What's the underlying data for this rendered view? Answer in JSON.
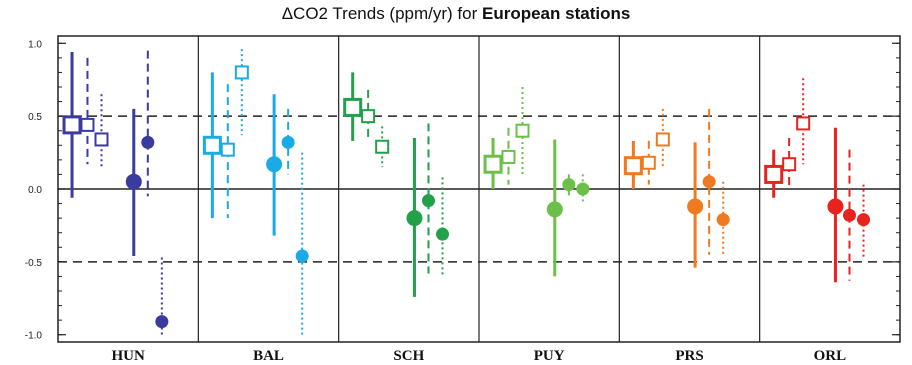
{
  "chart_data": {
    "type": "scatter",
    "title_prefix": "ΔCO2 Trends (ppm/yr) for",
    "title_bold": "European stations",
    "ylim": [
      -1.05,
      1.05
    ],
    "yticks": [
      1.0,
      0.5,
      0.0,
      -0.5,
      -1.0
    ],
    "ytick_labels": [
      "1.0",
      "0.5",
      "0.0",
      "-0.5",
      "-1.0"
    ],
    "reference_lines": [
      0.5,
      -0.5
    ],
    "zero_line": 0.0,
    "stations": [
      {
        "name": "HUN",
        "color": "#3b3a9e",
        "series": [
          {
            "marker": "square",
            "style": "solid",
            "value": 0.44,
            "low": -0.06,
            "high": 0.94
          },
          {
            "marker": "square",
            "style": "dashed",
            "value": 0.44,
            "low": 0.17,
            "high": 0.9
          },
          {
            "marker": "square",
            "style": "dotted",
            "value": 0.34,
            "low": 0.15,
            "high": 0.65
          },
          {
            "marker": "circle",
            "style": "solid",
            "value": 0.05,
            "low": -0.46,
            "high": 0.55
          },
          {
            "marker": "circle",
            "style": "dashed",
            "value": 0.32,
            "low": -0.05,
            "high": 0.95
          },
          {
            "marker": "circle",
            "style": "dotted",
            "value": -0.91,
            "low": -1.0,
            "high": -0.47
          }
        ]
      },
      {
        "name": "BAL",
        "color": "#1aaae6",
        "series": [
          {
            "marker": "square",
            "style": "solid",
            "value": 0.3,
            "low": -0.2,
            "high": 0.8
          },
          {
            "marker": "square",
            "style": "dashed",
            "value": 0.27,
            "low": -0.2,
            "high": 0.72
          },
          {
            "marker": "square",
            "style": "dotted",
            "value": 0.8,
            "low": 0.37,
            "high": 0.96
          },
          {
            "marker": "circle",
            "style": "solid",
            "value": 0.17,
            "low": -0.32,
            "high": 0.65
          },
          {
            "marker": "circle",
            "style": "dashed",
            "value": 0.32,
            "low": 0.1,
            "high": 0.55
          },
          {
            "marker": "circle",
            "style": "dotted",
            "value": -0.46,
            "low": -1.0,
            "high": 0.25
          }
        ]
      },
      {
        "name": "SCH",
        "color": "#22a04a",
        "series": [
          {
            "marker": "square",
            "style": "solid",
            "value": 0.56,
            "low": 0.33,
            "high": 0.8
          },
          {
            "marker": "square",
            "style": "dashed",
            "value": 0.5,
            "low": 0.33,
            "high": 0.68
          },
          {
            "marker": "square",
            "style": "dotted",
            "value": 0.29,
            "low": 0.15,
            "high": 0.43
          },
          {
            "marker": "circle",
            "style": "solid",
            "value": -0.2,
            "low": -0.74,
            "high": 0.35
          },
          {
            "marker": "circle",
            "style": "dashed",
            "value": -0.08,
            "low": -0.58,
            "high": 0.45
          },
          {
            "marker": "circle",
            "style": "dotted",
            "value": -0.31,
            "low": -0.6,
            "high": 0.08
          }
        ]
      },
      {
        "name": "PUY",
        "color": "#6cc04a",
        "series": [
          {
            "marker": "square",
            "style": "solid",
            "value": 0.17,
            "low": 0.0,
            "high": 0.35
          },
          {
            "marker": "square",
            "style": "dashed",
            "value": 0.22,
            "low": 0.03,
            "high": 0.42
          },
          {
            "marker": "square",
            "style": "dotted",
            "value": 0.4,
            "low": 0.1,
            "high": 0.7
          },
          {
            "marker": "circle",
            "style": "solid",
            "value": -0.14,
            "low": -0.6,
            "high": 0.34
          },
          {
            "marker": "circle",
            "style": "dashed",
            "value": 0.03,
            "low": -0.07,
            "high": 0.1
          },
          {
            "marker": "circle",
            "style": "dotted",
            "value": 0.0,
            "low": -0.1,
            "high": 0.1
          }
        ]
      },
      {
        "name": "PRS",
        "color": "#f07a20",
        "series": [
          {
            "marker": "square",
            "style": "solid",
            "value": 0.16,
            "low": 0.0,
            "high": 0.33
          },
          {
            "marker": "square",
            "style": "dashed",
            "value": 0.18,
            "low": 0.03,
            "high": 0.33
          },
          {
            "marker": "square",
            "style": "dotted",
            "value": 0.34,
            "low": 0.15,
            "high": 0.55
          },
          {
            "marker": "circle",
            "style": "solid",
            "value": -0.12,
            "low": -0.54,
            "high": 0.32
          },
          {
            "marker": "circle",
            "style": "dashed",
            "value": 0.05,
            "low": -0.45,
            "high": 0.55
          },
          {
            "marker": "circle",
            "style": "dotted",
            "value": -0.21,
            "low": -0.45,
            "high": 0.05
          }
        ]
      },
      {
        "name": "ORL",
        "color": "#e8221e",
        "series": [
          {
            "marker": "square",
            "style": "solid",
            "value": 0.1,
            "low": -0.06,
            "high": 0.27
          },
          {
            "marker": "square",
            "style": "dashed",
            "value": 0.17,
            "low": 0.0,
            "high": 0.35
          },
          {
            "marker": "square",
            "style": "dotted",
            "value": 0.45,
            "low": 0.17,
            "high": 0.76
          },
          {
            "marker": "circle",
            "style": "solid",
            "value": -0.12,
            "low": -0.64,
            "high": 0.42
          },
          {
            "marker": "circle",
            "style": "dashed",
            "value": -0.18,
            "low": -0.63,
            "high": 0.27
          },
          {
            "marker": "circle",
            "style": "dotted",
            "value": -0.21,
            "low": -0.47,
            "high": 0.03
          }
        ]
      }
    ]
  }
}
